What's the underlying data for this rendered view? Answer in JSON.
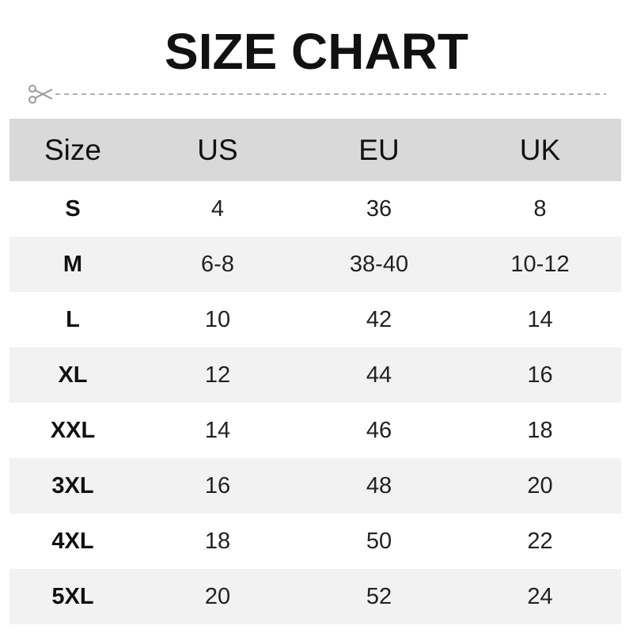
{
  "title": "SIZE CHART",
  "icons": {
    "cut": "scissors-icon"
  },
  "colors": {
    "header_bg": "#d9d9d9",
    "alt_row_bg": "#f2f2f2",
    "dash": "#999999"
  },
  "headers": [
    "Size",
    "US",
    "EU",
    "UK"
  ],
  "rows": [
    [
      "S",
      "4",
      "36",
      "8"
    ],
    [
      "M",
      "6-8",
      "38-40",
      "10-12"
    ],
    [
      "L",
      "10",
      "42",
      "14"
    ],
    [
      "XL",
      "12",
      "44",
      "16"
    ],
    [
      "XXL",
      "14",
      "46",
      "18"
    ],
    [
      "3XL",
      "16",
      "48",
      "20"
    ],
    [
      "4XL",
      "18",
      "50",
      "22"
    ],
    [
      "5XL",
      "20",
      "52",
      "24"
    ]
  ]
}
